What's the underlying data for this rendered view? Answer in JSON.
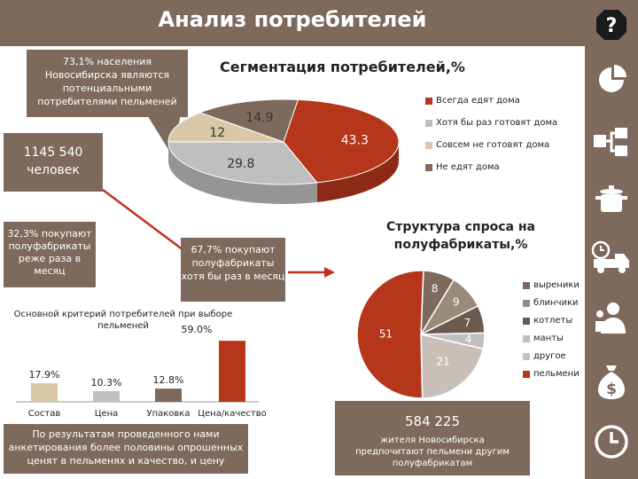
{
  "title": "Анализ потребителей",
  "sidebar": {
    "help_label": "?",
    "icons": [
      "help-icon",
      "pie-chart-icon",
      "flowchart-icon",
      "pot-icon",
      "delivery-truck-icon",
      "business-person-icon",
      "money-bag-icon",
      "clock-icon"
    ]
  },
  "callouts": {
    "potential": "73,1% населения Новосибирска являются потенциальными потребителями пельменей",
    "people": "1145 540 человек",
    "rarely": "32,3% покупают полуфабрикаты реже раза в месяц",
    "monthly": "67,7% покупают полуфабрикаты хотя бы раз в месяц",
    "survey": "По результатам проведенного нами анкетирования более половины опрошенных ценят в пельменях и качество, и цену",
    "prefer_number": "584 225",
    "prefer_text": "жителя Новосибирска предпочитают пельмени другим полуфабрикатам"
  },
  "colors": {
    "brown": "#7d6a5c",
    "red": "#b5361b",
    "gray": "#bfbfbf",
    "tan": "#d8c8a8",
    "dark": "#7d6a5c",
    "dark2": "#6b5a4e"
  },
  "chart_data": [
    {
      "type": "pie",
      "title": "Сегментация потребителей,%",
      "labels": [
        "Всегда едят дома",
        "Хотя бы раз готовят дома",
        "Совсем не готовят дома",
        "Не едят дома"
      ],
      "values": [
        43.3,
        29.8,
        12,
        14.9
      ],
      "value_labels": [
        "43.3",
        "29.8",
        "12",
        "14.9"
      ],
      "colors": [
        "#b5361b",
        "#bfbfbf",
        "#d8c8a8",
        "#7d6a5c"
      ],
      "legend": "right"
    },
    {
      "type": "pie",
      "title": "Структура спроса на полуфабрикаты,%",
      "labels": [
        "вырeники",
        "блинчики",
        "котлеты",
        "манты",
        "другое",
        "пельмени"
      ],
      "values": [
        8,
        9,
        7,
        4,
        21,
        51
      ],
      "value_labels": [
        "8",
        "9",
        "7",
        "4",
        "21",
        "51"
      ],
      "colors": [
        "#7d6a5c",
        "#9a8a7c",
        "#6b5a4e",
        "#bfbfbf",
        "#c8c0b8",
        "#b5361b"
      ],
      "legend": "right"
    },
    {
      "type": "bar",
      "title": "Основной критерий потребителей при выборе пельменей",
      "categories": [
        "Состав",
        "Цена",
        "Упаковка",
        "Цена/качество"
      ],
      "values": [
        17.9,
        10.3,
        12.8,
        59.0
      ],
      "value_labels": [
        "17.9%",
        "10.3%",
        "12.8%",
        "59.0%"
      ],
      "colors": [
        "#d8c8a8",
        "#bfbfbf",
        "#7d6a5c",
        "#b5361b"
      ],
      "ylim": [
        0,
        60
      ]
    }
  ]
}
